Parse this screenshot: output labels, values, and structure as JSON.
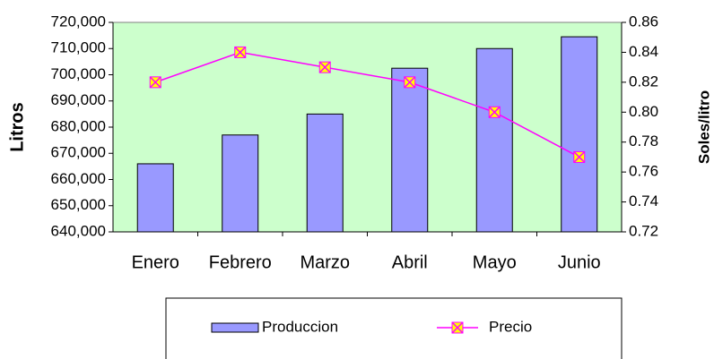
{
  "chart_data": {
    "type": "bar-line",
    "categories": [
      "Enero",
      "Febrero",
      "Marzo",
      "Abril",
      "Mayo",
      "Junio"
    ],
    "series": [
      {
        "name": "Produccion",
        "type": "bar",
        "color": "#9999ff",
        "values": [
          666000,
          677000,
          685000,
          702500,
          710000,
          714500
        ]
      },
      {
        "name": "Precio",
        "type": "line",
        "axis": "y2",
        "color": "#ff00ff",
        "marker_color": "#ffff00",
        "values": [
          0.82,
          0.84,
          0.83,
          0.82,
          0.8,
          0.77
        ]
      }
    ],
    "ylabel": "Litros",
    "y2label": "Soles/litro",
    "ylim": [
      640000,
      720000
    ],
    "yticks": [
      {
        "value": 640000,
        "label": "640,000"
      },
      {
        "value": 650000,
        "label": "650,000"
      },
      {
        "value": 660000,
        "label": "660,000"
      },
      {
        "value": 670000,
        "label": "670,000"
      },
      {
        "value": 680000,
        "label": "680,000"
      },
      {
        "value": 690000,
        "label": "690,000"
      },
      {
        "value": 700000,
        "label": "700,000"
      },
      {
        "value": 710000,
        "label": "710,000"
      },
      {
        "value": 720000,
        "label": "720,000"
      }
    ],
    "y2lim": [
      0.72,
      0.86
    ],
    "y2ticks": [
      0.72,
      0.74,
      0.76,
      0.78,
      {
        "value": 0.8,
        "label": "0.80"
      },
      0.82,
      0.84,
      0.86
    ],
    "plot_background": "#ccffcc",
    "grid": false,
    "legend": "bottom"
  }
}
